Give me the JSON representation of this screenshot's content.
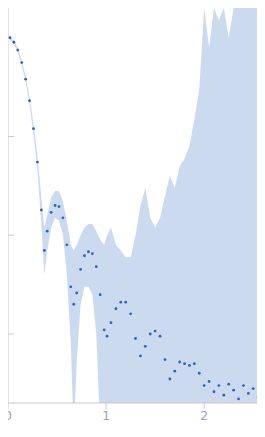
{
  "chart_data": {
    "type": "scatter",
    "x": [
      0.02,
      0.06,
      0.1,
      0.14,
      0.18,
      0.22,
      0.26,
      0.3,
      0.34,
      0.37,
      0.4,
      0.44,
      0.48,
      0.52,
      0.56,
      0.6,
      0.64,
      0.67,
      0.7,
      0.74,
      0.78,
      0.82,
      0.86,
      0.9,
      0.94,
      0.98,
      1.01,
      1.05,
      1.1,
      1.15,
      1.2,
      1.25,
      1.3,
      1.35,
      1.4,
      1.45,
      1.5,
      1.55,
      1.6,
      1.65,
      1.7,
      1.75,
      1.8,
      1.85,
      1.9,
      1.95,
      2.0,
      2.05,
      2.1,
      2.15,
      2.2,
      2.25,
      2.3,
      2.35,
      2.4,
      2.45,
      2.5,
      2.55,
      2.6
    ],
    "values": [
      1000,
      900,
      750,
      560,
      380,
      230,
      120,
      55,
      18,
      7,
      11,
      17,
      20,
      19.5,
      15,
      8,
      3,
      2,
      2.6,
      4.5,
      6.2,
      6.8,
      6.5,
      4.8,
      2.5,
      1.1,
      0.95,
      1.3,
      1.8,
      2.1,
      2.1,
      1.6,
      0.9,
      0.6,
      0.75,
      1.0,
      1.07,
      0.95,
      0.55,
      0.35,
      0.42,
      0.52,
      0.5,
      0.48,
      0.5,
      0.4,
      0.3,
      0.33,
      0.26,
      0.3,
      0.24,
      0.31,
      0.27,
      0.22,
      0.3,
      0.25,
      0.28,
      0.23,
      0.3
    ],
    "lower": [
      950,
      860,
      710,
      530,
      355,
      210,
      105,
      46,
      13,
      4,
      7,
      12,
      15,
      14,
      10,
      4,
      0.8,
      0.1,
      0.5,
      2,
      3,
      3,
      2.5,
      1,
      0.1,
      0.1,
      0.1,
      0.1,
      0.1,
      0.2,
      0.1,
      0.1,
      0.1,
      0.1,
      0.1,
      0.1,
      0.1,
      0.1,
      0.1,
      0.1,
      0.1,
      0.1,
      0.1,
      0.1,
      0.1,
      0.1,
      0.1,
      0.1,
      0.1,
      0.1,
      0.1,
      0.1,
      0.1,
      0.1,
      0.1,
      0.1,
      0.1,
      0.1,
      0.1
    ],
    "upper": [
      1050,
      940,
      790,
      590,
      405,
      250,
      135,
      65,
      24,
      12,
      16,
      24,
      28,
      28,
      22,
      14,
      8,
      7,
      8,
      10,
      12,
      13,
      13,
      11,
      9,
      8,
      10,
      12,
      8,
      7,
      6,
      6,
      10,
      20,
      30,
      15,
      12,
      15,
      25,
      40,
      30,
      50,
      60,
      80,
      150,
      300,
      2000,
      800,
      2000,
      1500,
      2000,
      1000,
      2000,
      2000,
      2000,
      2000,
      2000,
      2000,
      2000
    ],
    "color": "#2e64b8",
    "xlim": [
      0,
      2.62
    ],
    "xticks": [
      0,
      1,
      2
    ],
    "ylim": [
      0.2,
      2000
    ],
    "yticks": [
      1,
      10,
      100
    ],
    "log": "y",
    "tick_labels": "x"
  }
}
